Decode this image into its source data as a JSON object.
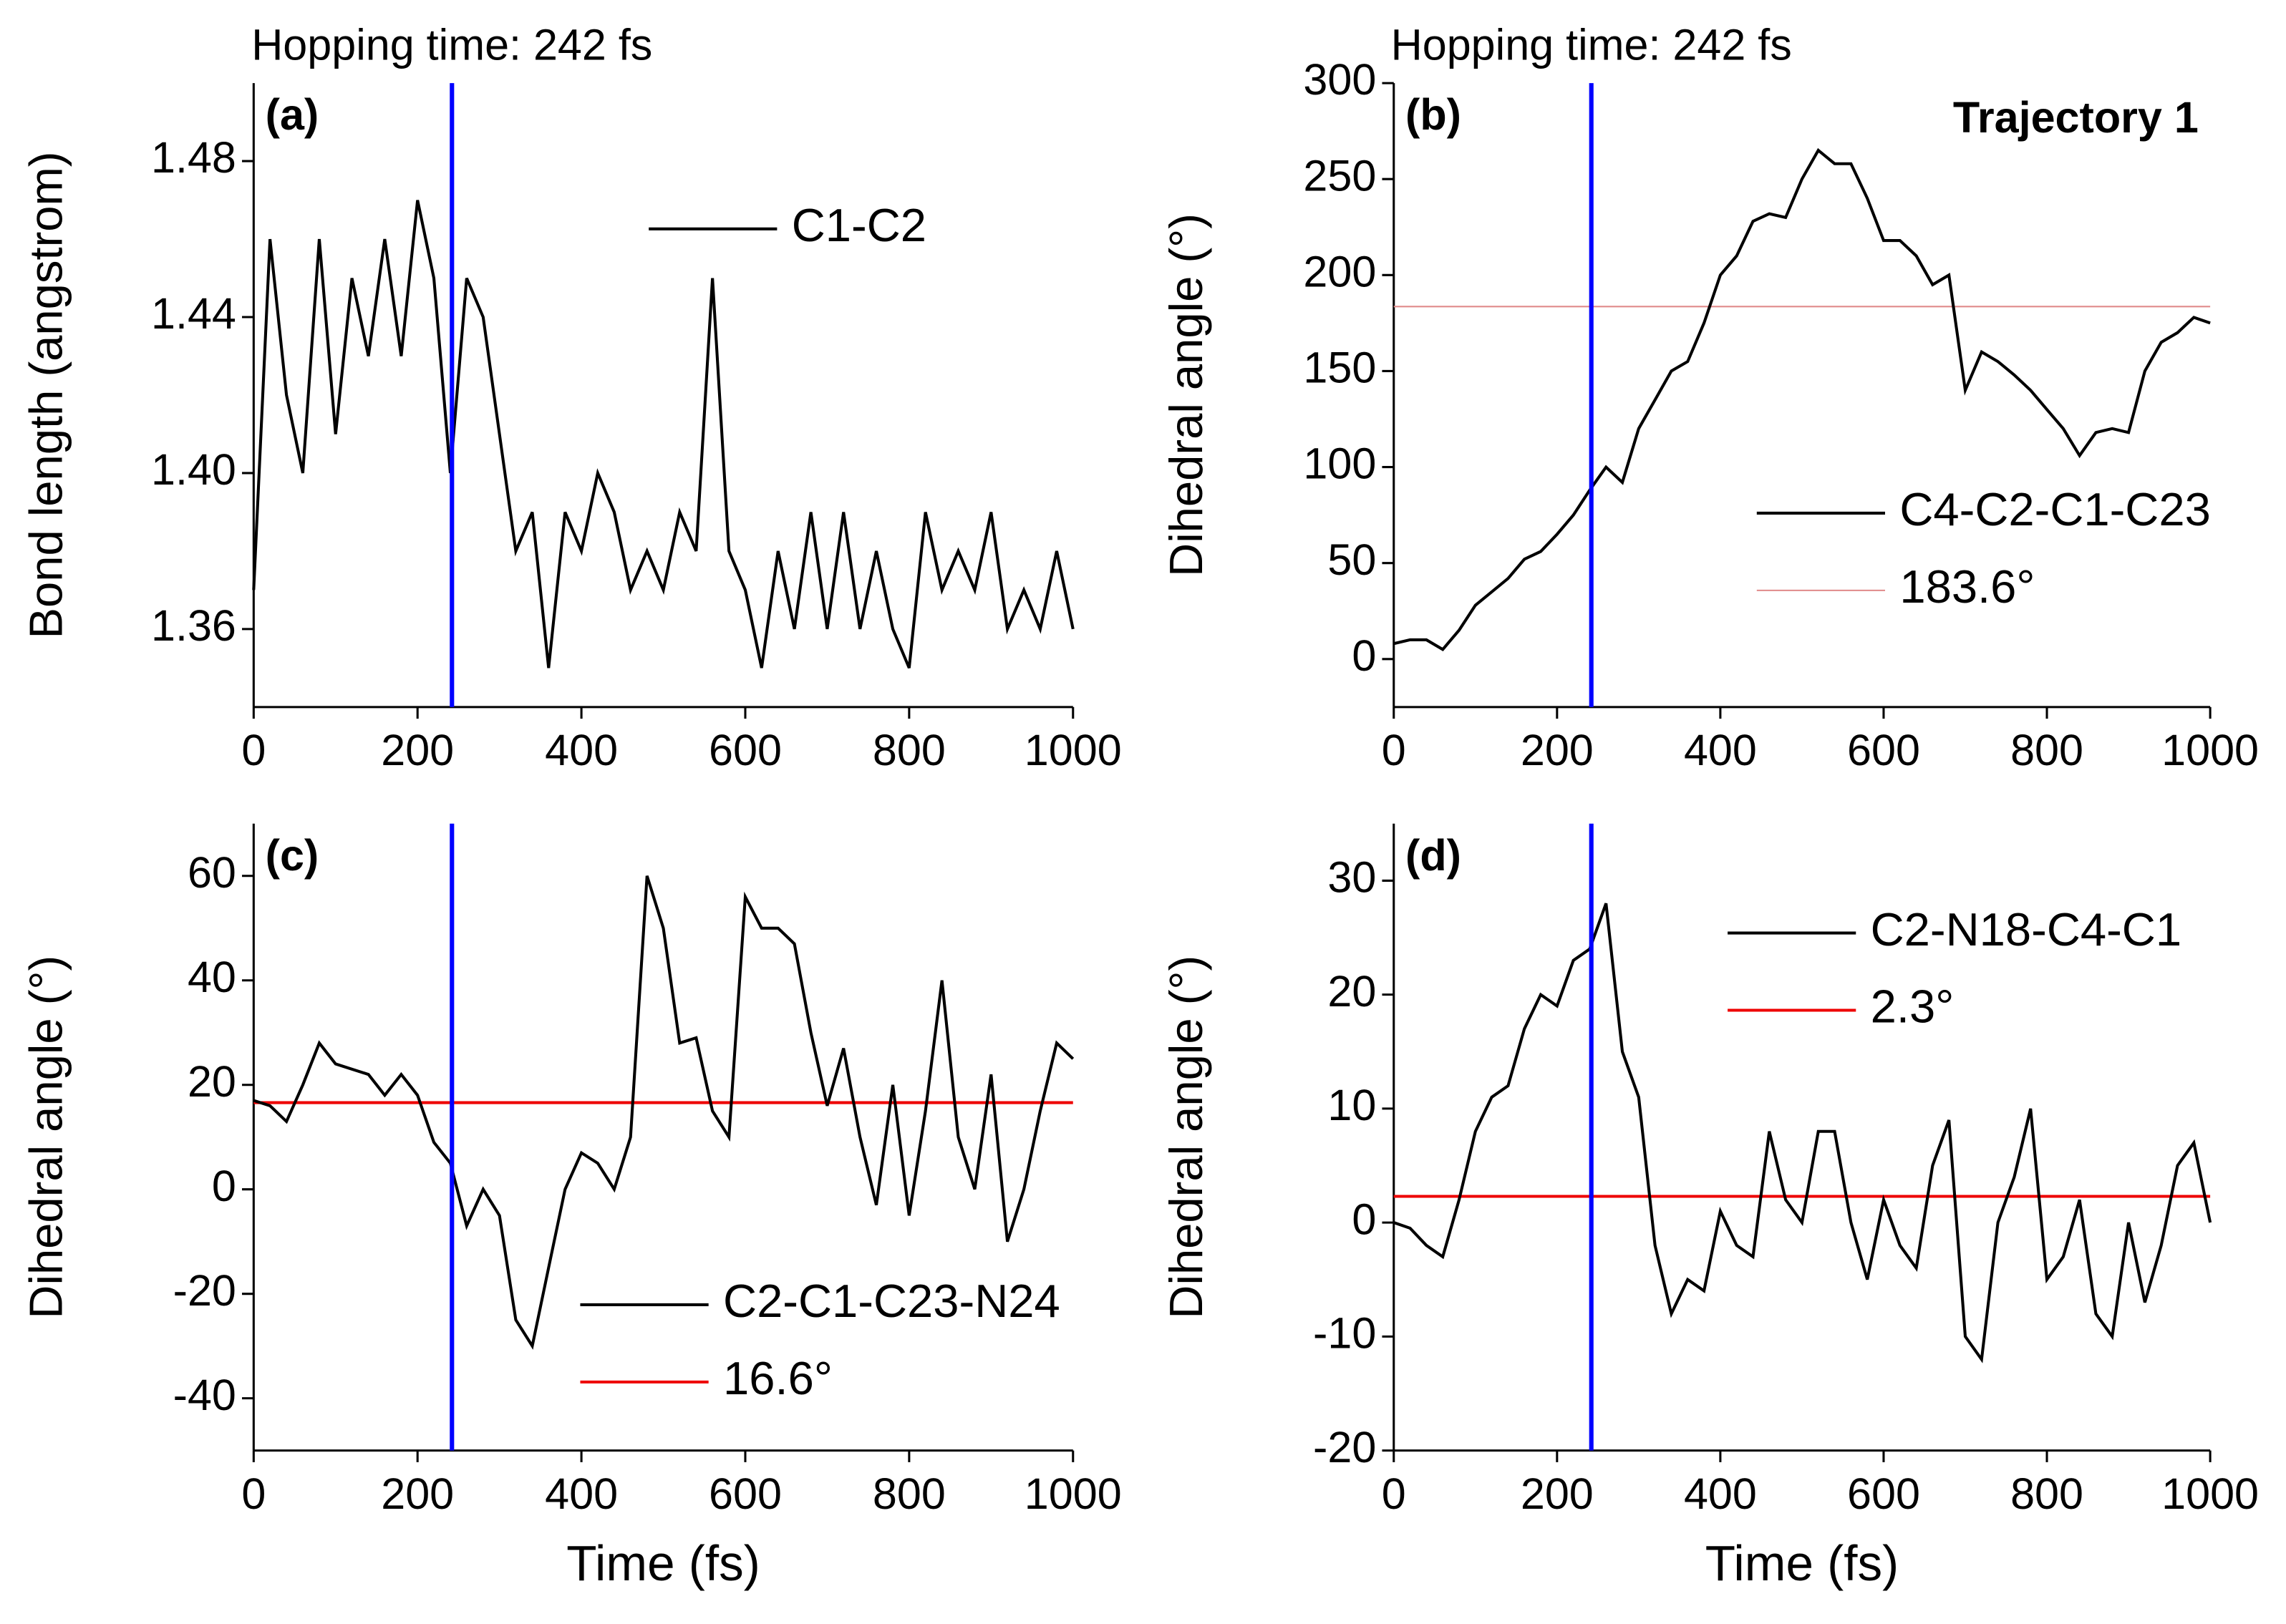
{
  "chart_data": [
    {
      "type": "line",
      "panel": "(a)",
      "annotation": "Hopping time: 242 fs",
      "ylabel": "Bond length (angstrom)",
      "x": [
        0,
        20,
        40,
        60,
        80,
        100,
        120,
        140,
        160,
        180,
        200,
        220,
        240,
        260,
        280,
        300,
        320,
        340,
        360,
        380,
        400,
        420,
        440,
        460,
        480,
        500,
        520,
        540,
        560,
        580,
        600,
        620,
        640,
        660,
        680,
        700,
        720,
        740,
        760,
        780,
        800,
        820,
        840,
        860,
        880,
        900,
        920,
        940,
        960,
        980,
        1000
      ],
      "series": [
        {
          "name": "C1-C2",
          "color": "#000000",
          "values": [
            1.37,
            1.46,
            1.42,
            1.4,
            1.46,
            1.41,
            1.45,
            1.43,
            1.46,
            1.43,
            1.47,
            1.45,
            1.4,
            1.45,
            1.44,
            1.41,
            1.38,
            1.39,
            1.35,
            1.39,
            1.38,
            1.4,
            1.39,
            1.37,
            1.38,
            1.37,
            1.39,
            1.38,
            1.45,
            1.38,
            1.37,
            1.35,
            1.38,
            1.36,
            1.39,
            1.36,
            1.39,
            1.36,
            1.38,
            1.36,
            1.35,
            1.39,
            1.37,
            1.38,
            1.37,
            1.39,
            1.36,
            1.37,
            1.36,
            1.38,
            1.36
          ]
        }
      ],
      "vline": {
        "value": 242,
        "color": "#0000ff"
      },
      "xlim": [
        0,
        1000
      ],
      "xticks": [
        0,
        200,
        400,
        600,
        800,
        1000
      ],
      "ylim": [
        1.34,
        1.5
      ],
      "yticks": [
        1.36,
        {
          "value": 1.4,
          "label": "1.40"
        },
        1.44,
        1.48
      ]
    },
    {
      "type": "line",
      "panel": "(b)",
      "title": "Trajectory 1",
      "annotation": "Hopping time: 242 fs",
      "ylabel": "Dihedral angle (°)",
      "x": [
        0,
        20,
        40,
        60,
        80,
        100,
        120,
        140,
        160,
        180,
        200,
        220,
        240,
        260,
        280,
        300,
        320,
        340,
        360,
        380,
        400,
        420,
        440,
        460,
        480,
        500,
        520,
        540,
        560,
        580,
        600,
        620,
        640,
        660,
        680,
        700,
        720,
        740,
        760,
        780,
        800,
        820,
        840,
        860,
        880,
        900,
        920,
        940,
        960,
        980,
        1000
      ],
      "series": [
        {
          "name": "C4-C2-C1-C23",
          "color": "#000000",
          "values": [
            8,
            10,
            10,
            5,
            15,
            28,
            35,
            42,
            52,
            56,
            65,
            75,
            88,
            100,
            92,
            120,
            135,
            150,
            155,
            175,
            200,
            210,
            228,
            232,
            230,
            250,
            265,
            258,
            258,
            240,
            218,
            218,
            210,
            195,
            200,
            140,
            160,
            155,
            148,
            140,
            130,
            120,
            106,
            118,
            120,
            118,
            150,
            165,
            170,
            178,
            175
          ]
        }
      ],
      "reference": {
        "name": "183.6°",
        "value": 183.6,
        "color": "#e08a8a"
      },
      "vline": {
        "value": 242,
        "color": "#0000ff"
      },
      "xlim": [
        0,
        1000
      ],
      "xticks": [
        0,
        200,
        400,
        600,
        800,
        1000
      ],
      "ylim": [
        -25,
        300
      ],
      "yticks": [
        0,
        50,
        100,
        150,
        200,
        250,
        300
      ]
    },
    {
      "type": "line",
      "panel": "(c)",
      "xlabel": "Time (fs)",
      "ylabel": "Dihedral angle (°)",
      "x": [
        0,
        20,
        40,
        60,
        80,
        100,
        120,
        140,
        160,
        180,
        200,
        220,
        240,
        260,
        280,
        300,
        320,
        340,
        360,
        380,
        400,
        420,
        440,
        460,
        480,
        500,
        520,
        540,
        560,
        580,
        600,
        620,
        640,
        660,
        680,
        700,
        720,
        740,
        760,
        780,
        800,
        820,
        840,
        860,
        880,
        900,
        920,
        940,
        960,
        980,
        1000
      ],
      "series": [
        {
          "name": "C2-C1-C23-N24",
          "color": "#000000",
          "values": [
            17,
            16,
            13,
            20,
            28,
            24,
            23,
            22,
            18,
            22,
            18,
            9,
            5,
            -7,
            0,
            -5,
            -25,
            -30,
            -15,
            0,
            7,
            5,
            0,
            10,
            60,
            50,
            28,
            29,
            15,
            10,
            56,
            50,
            50,
            47,
            30,
            16,
            27,
            10,
            -3,
            20,
            -5,
            15,
            40,
            10,
            0,
            22,
            -10,
            0,
            15,
            28,
            25
          ]
        }
      ],
      "reference": {
        "name": "16.6°",
        "value": 16.6,
        "color": "#ee0000"
      },
      "vline": {
        "value": 242,
        "color": "#0000ff"
      },
      "xlim": [
        0,
        1000
      ],
      "xticks": [
        0,
        200,
        400,
        600,
        800,
        1000
      ],
      "ylim": [
        -50,
        70
      ],
      "yticks": [
        -40,
        -20,
        0,
        20,
        40,
        60
      ]
    },
    {
      "type": "line",
      "panel": "(d)",
      "xlabel": "Time (fs)",
      "ylabel": "Dihedral angle (°)",
      "x": [
        0,
        20,
        40,
        60,
        80,
        100,
        120,
        140,
        160,
        180,
        200,
        220,
        240,
        260,
        280,
        300,
        320,
        340,
        360,
        380,
        400,
        420,
        440,
        460,
        480,
        500,
        520,
        540,
        560,
        580,
        600,
        620,
        640,
        660,
        680,
        700,
        720,
        740,
        760,
        780,
        800,
        820,
        840,
        860,
        880,
        900,
        920,
        940,
        960,
        980,
        1000
      ],
      "series": [
        {
          "name": "C2-N18-C4-C1",
          "color": "#000000",
          "values": [
            0,
            -0.5,
            -2,
            -3,
            2,
            8,
            11,
            12,
            17,
            20,
            19,
            23,
            24,
            28,
            15,
            11,
            -2,
            -8,
            -5,
            -6,
            1,
            -2,
            -3,
            8,
            2,
            0,
            8,
            8,
            0,
            -5,
            2,
            -2,
            -4,
            5,
            9,
            -10,
            -12,
            0,
            4,
            10,
            -5,
            -3,
            2,
            -8,
            -10,
            0,
            -7,
            -2,
            5,
            7,
            0
          ]
        }
      ],
      "reference": {
        "name": "2.3°",
        "value": 2.3,
        "color": "#ee0000"
      },
      "vline": {
        "value": 242,
        "color": "#0000ff"
      },
      "xlim": [
        0,
        1000
      ],
      "xticks": [
        0,
        200,
        400,
        600,
        800,
        1000
      ],
      "ylim": [
        -20,
        35
      ],
      "yticks": [
        -20,
        -10,
        0,
        10,
        20,
        30
      ]
    }
  ]
}
